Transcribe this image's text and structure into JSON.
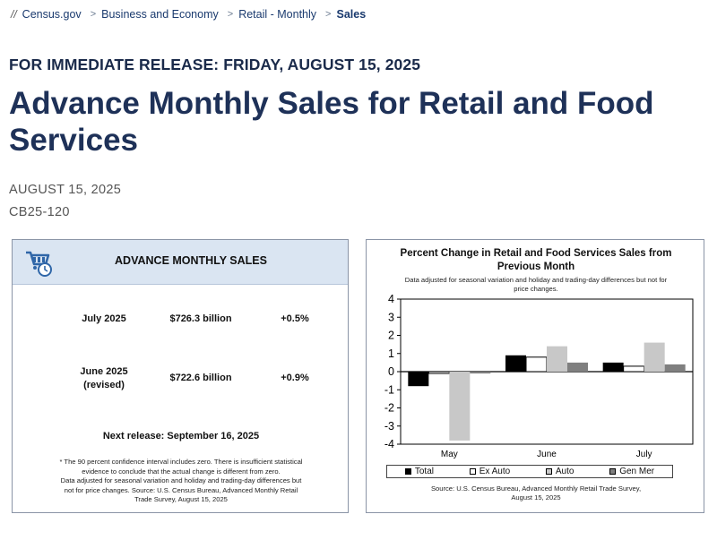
{
  "breadcrumb": {
    "items": [
      "Census.gov",
      "Business and Economy",
      "Retail - Monthly",
      "Sales"
    ]
  },
  "release_line": "FOR IMMEDIATE RELEASE: FRIDAY, AUGUST 15, 2025",
  "page_title": "Advance Monthly Sales for Retail and Food Services",
  "release_date": "AUGUST 15, 2025",
  "release_code": "CB25-120",
  "sales_card": {
    "title": "ADVANCE MONTHLY SALES",
    "icon": "shopping-cart-clock-icon",
    "rows": [
      {
        "period": "July 2025",
        "amount": "$726.3 billion",
        "change": "+0.5%"
      },
      {
        "period": "June 2025",
        "period_note": "(revised)",
        "amount": "$722.6 billion",
        "change": "+0.9%"
      }
    ],
    "next_release": "Next release: September 16, 2025",
    "footnote_lines": [
      "* The 90 percent confidence interval includes zero. There is insufficient statistical",
      "evidence to conclude that the actual change is different from zero.",
      "Data adjusted for seasonal variation and holiday and trading-day differences but",
      "not for price changes. Source: U.S. Census Bureau, Advanced Monthly Retail",
      "Trade Survey, August 15, 2025"
    ]
  },
  "chart_card": {
    "title_lines": [
      "Percent Change in Retail and Food Services Sales from",
      "Previous Month"
    ],
    "subtitle_lines": [
      "Data adjusted for seasonal variation and holiday and trading-day differences but not for",
      "price changes."
    ],
    "source_lines": [
      "Source: U.S. Census Bureau, Advanced Monthly Retail Trade Survey,",
      "August 15, 2025"
    ]
  },
  "chart_data": {
    "type": "bar",
    "categories": [
      "May",
      "June",
      "July"
    ],
    "series": [
      {
        "name": "Total",
        "color": "#000000",
        "values": [
          -0.8,
          0.9,
          0.5
        ]
      },
      {
        "name": "Ex Auto",
        "color": "#ffffff",
        "values": [
          -0.1,
          0.8,
          0.3
        ]
      },
      {
        "name": "Auto",
        "color": "#c8c8c8",
        "values": [
          -3.8,
          1.4,
          1.6
        ]
      },
      {
        "name": "Gen Mer",
        "color": "#7f7f7f",
        "values": [
          -0.1,
          0.5,
          0.4
        ]
      }
    ],
    "ylim": [
      -4,
      4
    ],
    "yticks": [
      "4",
      "3",
      "2",
      "1",
      "0",
      "-1",
      "-2",
      "-3",
      "-4"
    ],
    "legend_position": "bottom"
  }
}
